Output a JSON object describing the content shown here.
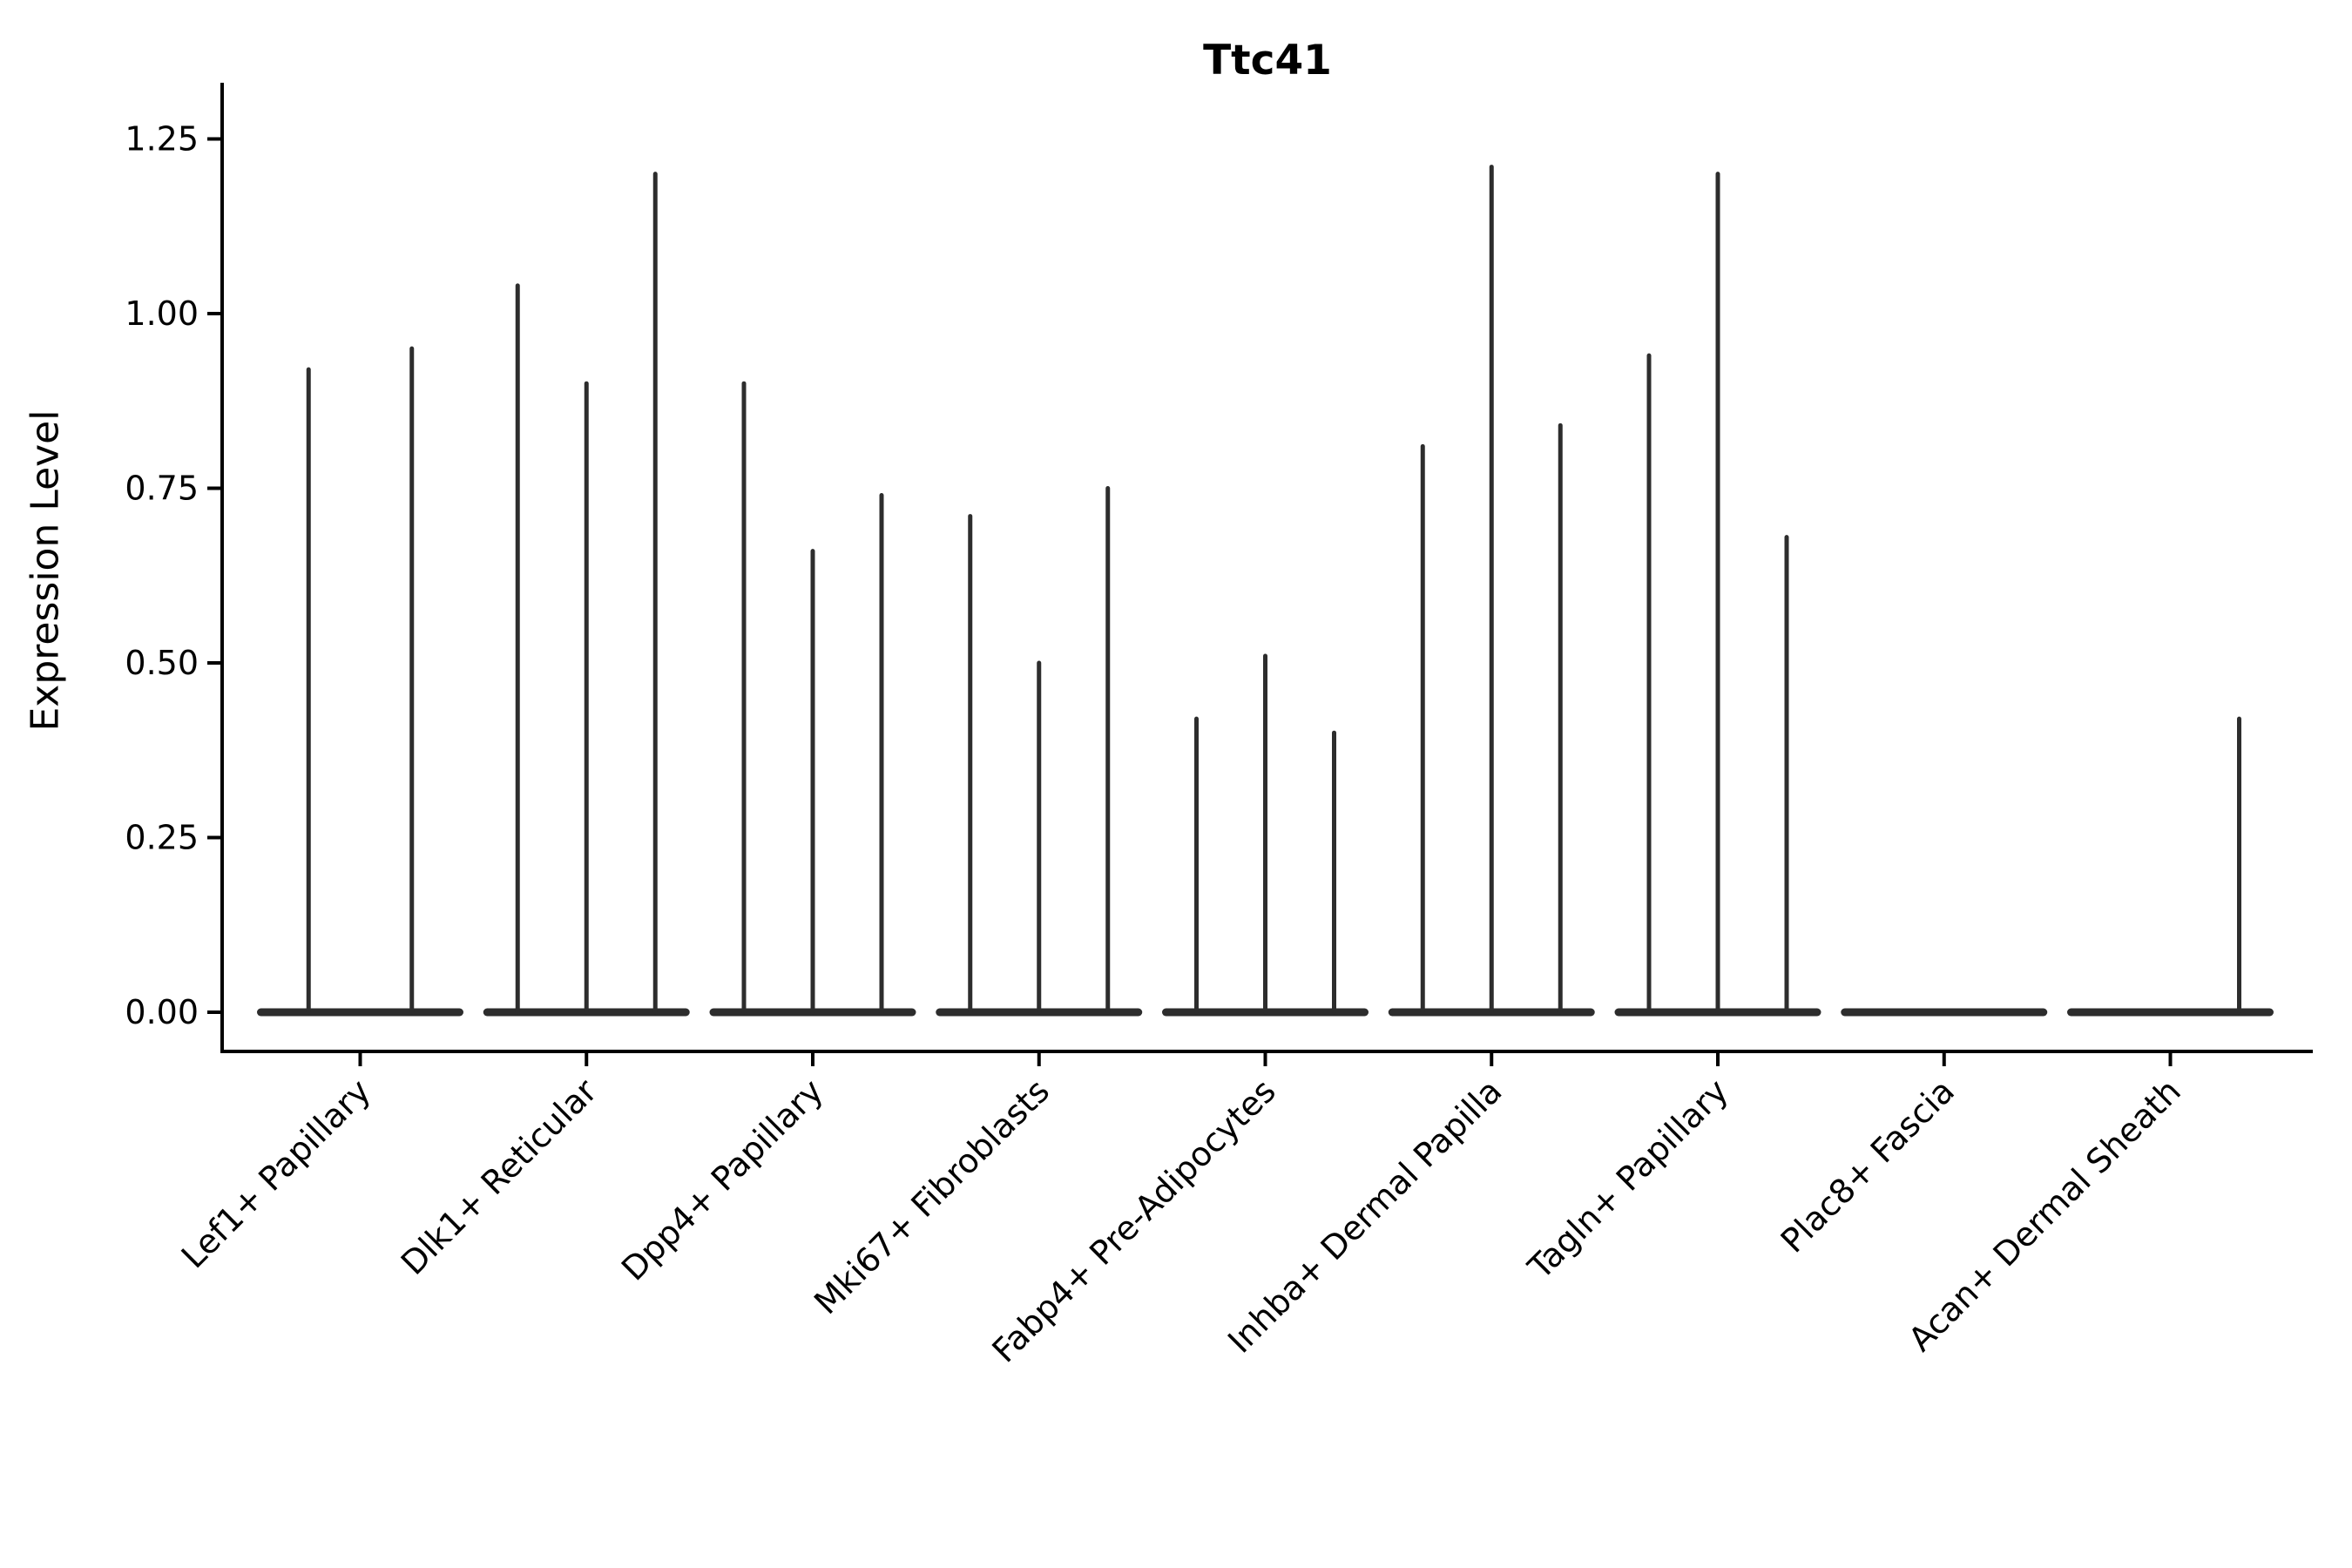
{
  "chart_data": {
    "type": "violin",
    "title": "Ttc41",
    "ylabel": "Expression Level",
    "xlabel": "",
    "ytick_labels": [
      "0.00",
      "0.25",
      "0.50",
      "0.75",
      "1.00",
      "1.25"
    ],
    "ytick_values": [
      0.0,
      0.25,
      0.5,
      0.75,
      1.0,
      1.25
    ],
    "ylim": [
      -0.056,
      1.33
    ],
    "grid": false,
    "legend": null,
    "x_tick_rotation_deg": 45,
    "violin_color": "#2d2d2d",
    "axis_color": "#000000",
    "categories": [
      "Lef1+ Papillary",
      "Dlk1+ Reticular",
      "Dpp4+ Papillary",
      "Mki67+ Fibroblasts",
      "Fabp4+ Pre-Adipocytes",
      "Inhba+ Dermal Papilla",
      "Tagln+ Papillary",
      "Plac8+ Fascia",
      "Acan+ Dermal Sheath"
    ],
    "groups": [
      {
        "label": "Lef1+ Papillary",
        "violin_peak_expression": [
          0.92,
          0.95
        ]
      },
      {
        "label": "Dlk1+ Reticular",
        "violin_peak_expression": [
          1.04,
          0.9,
          1.2
        ]
      },
      {
        "label": "Dpp4+ Papillary",
        "violin_peak_expression": [
          0.9,
          0.66,
          0.74
        ]
      },
      {
        "label": "Mki67+ Fibroblasts",
        "violin_peak_expression": [
          0.71,
          0.5,
          0.75
        ]
      },
      {
        "label": "Fabp4+ Pre-Adipocytes",
        "violin_peak_expression": [
          0.42,
          0.51,
          0.4
        ]
      },
      {
        "label": "Inhba+ Dermal Papilla",
        "violin_peak_expression": [
          0.81,
          1.21,
          0.84
        ]
      },
      {
        "label": "Tagln+ Papillary",
        "violin_peak_expression": [
          0.94,
          1.2,
          0.68
        ]
      },
      {
        "label": "Plac8+ Fascia",
        "violin_peak_expression": [
          0.0,
          0.0,
          0.0
        ]
      },
      {
        "label": "Acan+ Dermal Sheath",
        "violin_peak_expression": [
          0.0,
          0.0,
          0.42
        ]
      }
    ]
  }
}
